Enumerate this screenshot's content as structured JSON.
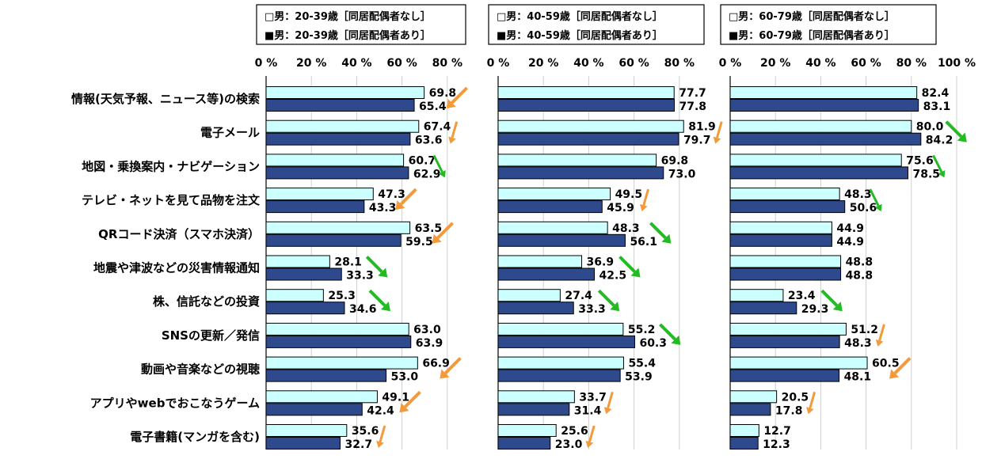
{
  "chart_data": {
    "type": "bar",
    "orientation": "horizontal",
    "categories": [
      "情報(天気予報、ニュース等)の検索",
      "電子メール",
      "地図・乗換案内・ナビゲーション",
      "テレビ・ネットを見て品物を注文",
      "QRコード決済（スマホ決済）",
      "地震や津波などの災害情報通知",
      "株、信託などの投資",
      "SNSの更新／発信",
      "動画や音楽などの視聴",
      "アプリやwebでおこなうゲーム",
      "電子書籍(マンガを含む)"
    ],
    "tick_labels": [
      "0 %",
      "20 %",
      "40 %",
      "60 %",
      "80 %",
      "100 %"
    ],
    "colors": {
      "no_spouse": "#CCFFFF",
      "with_spouse": "#2E4A8C",
      "increase_arrow": "#22BB22",
      "decrease_arrow": "#F39A3A"
    },
    "panels": [
      {
        "xlim": [
          0,
          100
        ],
        "ticks_shown": 5,
        "legend": [
          "□男：20-39歳［同居配偶者なし］",
          "■男：20-39歳［同居配偶者あり］"
        ],
        "series": [
          {
            "name": "男：20-39歳［同居配偶者なし］",
            "values": [
              69.8,
              67.4,
              60.7,
              47.3,
              63.5,
              28.1,
              25.3,
              63.0,
              66.9,
              49.1,
              35.6
            ]
          },
          {
            "name": "男：20-39歳［同居配偶者あり］",
            "values": [
              65.4,
              63.6,
              62.9,
              43.3,
              59.5,
              33.3,
              34.6,
              63.9,
              53.0,
              42.4,
              32.7
            ]
          }
        ],
        "arrows": [
          "down-big",
          "down",
          "up",
          "down-big",
          "down-big",
          "up-big",
          "up-big",
          "",
          "down-big",
          "down-big",
          "down"
        ]
      },
      {
        "xlim": [
          0,
          100
        ],
        "ticks_shown": 5,
        "legend": [
          "□男：40-59歳［同居配偶者なし］",
          "■男：40-59歳［同居配偶者あり］"
        ],
        "series": [
          {
            "name": "男：40-59歳［同居配偶者なし］",
            "values": [
              77.7,
              81.9,
              69.8,
              49.5,
              48.3,
              36.9,
              27.4,
              55.2,
              55.4,
              33.7,
              25.6
            ]
          },
          {
            "name": "男：40-59歳［同居配偶者あり］",
            "values": [
              77.8,
              79.7,
              73.0,
              45.9,
              56.1,
              42.5,
              33.3,
              60.3,
              53.9,
              31.4,
              23.0
            ]
          }
        ],
        "arrows": [
          "",
          "down",
          "",
          "down",
          "up-big",
          "up-big",
          "up-big",
          "up-big",
          "",
          "down",
          "down"
        ]
      },
      {
        "xlim": [
          0,
          100
        ],
        "ticks_shown": 6,
        "legend": [
          "□男：60-79歳［同居配偶者なし］",
          "■男：60-79歳［同居配偶者あり］"
        ],
        "series": [
          {
            "name": "男：60-79歳［同居配偶者なし］",
            "values": [
              82.4,
              80.0,
              75.6,
              48.3,
              44.9,
              48.8,
              23.4,
              51.2,
              60.5,
              20.5,
              12.7
            ]
          },
          {
            "name": "男：60-79歳［同居配偶者あり］",
            "values": [
              83.1,
              84.2,
              78.5,
              50.6,
              44.9,
              48.8,
              29.3,
              48.3,
              48.1,
              17.8,
              12.3
            ]
          }
        ],
        "arrows": [
          "",
          "up-big",
          "up",
          "up",
          "",
          "",
          "up-big",
          "down",
          "down-big",
          "down",
          ""
        ]
      }
    ]
  }
}
